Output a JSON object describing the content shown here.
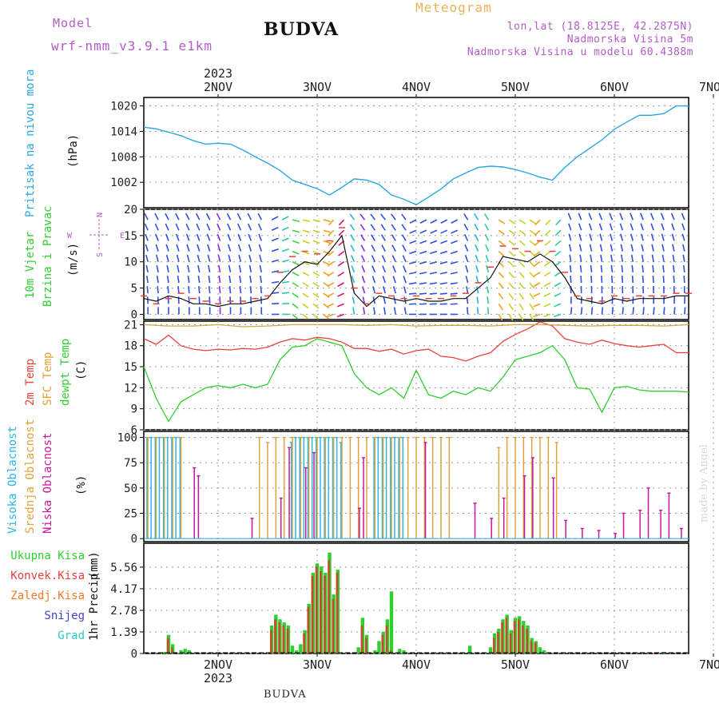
{
  "header": {
    "model_label": "Model",
    "model_name": "wrf-nmm_v3.9.1 e1km",
    "station": "BUDVA",
    "meteogram": "Meteogram",
    "lonlat": "lon,lat (18.8125E, 42.2875N)",
    "altitude": "Nadmorska Visina 5m",
    "model_altitude": "Nadmorska Visina u modelu 60.4388m"
  },
  "footer": {
    "station": "BUDVA",
    "made_by": "made by Angel"
  },
  "time_axis": {
    "year": "2023",
    "days": [
      "2NOV",
      "3NOV",
      "4NOV",
      "5NOV",
      "6NOV",
      "7NOV"
    ],
    "start_hour": -6,
    "end_hour": 126
  },
  "colors": {
    "pressure": "#29a7e1",
    "temp2m": "#e8413a",
    "sfc": "#e0a33a",
    "dewpt": "#2fcf2f",
    "high_cloud": "#2bb5e8",
    "mid_cloud": "#e0a33a",
    "low_cloud": "#c8189c",
    "total_precip": "#2fcf2f",
    "conv_precip": "#c84a2a",
    "gust": "#e8413a"
  },
  "chart_data": [
    {
      "type": "line",
      "panel": "pressure",
      "ylabel": [
        "Pritisak na nivou mora",
        "(hPa)"
      ],
      "ylim": [
        996,
        1022
      ],
      "yticks": [
        1002,
        1008,
        1014,
        1020
      ],
      "series": [
        {
          "x": [
            -6,
            -3,
            0,
            3,
            6,
            9,
            12,
            15,
            18,
            21,
            24,
            27,
            30,
            33,
            36,
            39,
            42,
            45,
            48,
            51,
            54,
            57,
            60,
            63,
            66,
            69,
            72,
            75,
            78,
            81,
            84,
            87,
            90,
            93,
            96,
            99,
            102,
            105,
            108,
            111,
            114,
            117,
            120,
            123,
            126
          ],
          "values": [
            1015,
            1014.6,
            1013.8,
            1013,
            1011.8,
            1011,
            1011.2,
            1011,
            1009.6,
            1008,
            1006.5,
            1004.8,
            1002.5,
            1001.5,
            1000.5,
            999,
            1000.8,
            1002.8,
            1002.5,
            1001.5,
            999,
            998,
            996.7,
            998.5,
            1000.4,
            1002.8,
            1004.2,
            1005.5,
            1005.8,
            1005.6,
            1005,
            1004.2,
            1003.2,
            1002.5,
            1005.5,
            1008,
            1010,
            1012,
            1014.5,
            1016.2,
            1017.8,
            1017.8,
            1018.2,
            1020,
            1020
          ]
        }
      ]
    },
    {
      "type": "line",
      "panel": "wind",
      "ylabel": [
        "10m Vjetar",
        "Brzina i Pravac",
        "(m/s)"
      ],
      "compass": {
        "n": "N",
        "s": "S",
        "w": "W",
        "e": "E"
      },
      "ylim": [
        -1,
        20
      ],
      "yticks": [
        0,
        5,
        10,
        15,
        20
      ],
      "series": [
        {
          "name": "speed",
          "x": [
            -6,
            -3,
            0,
            3,
            6,
            9,
            12,
            15,
            18,
            21,
            24,
            27,
            30,
            33,
            36,
            39,
            42,
            45,
            48,
            51,
            54,
            57,
            60,
            63,
            66,
            69,
            72,
            75,
            78,
            81,
            84,
            87,
            90,
            93,
            96,
            99,
            102,
            105,
            108,
            111,
            114,
            117,
            120,
            123,
            126
          ],
          "values": [
            3,
            2.5,
            3.5,
            3,
            2,
            2,
            1.5,
            2,
            2,
            2.5,
            3,
            6,
            8.5,
            10,
            9.5,
            12,
            15,
            4,
            1.5,
            3.5,
            3,
            2.5,
            3,
            2.5,
            2.5,
            3,
            3,
            5,
            7,
            11,
            10.5,
            10,
            11.5,
            10,
            7,
            3,
            2.5,
            2,
            3,
            2.5,
            3,
            3,
            3,
            3.5,
            3.5
          ]
        },
        {
          "name": "gust",
          "x": [
            -6,
            -3,
            0,
            3,
            6,
            9,
            12,
            15,
            18,
            21,
            24,
            27,
            30,
            33,
            36,
            39,
            42,
            45,
            48,
            51,
            54,
            57,
            60,
            63,
            66,
            69,
            72,
            75,
            78,
            81,
            84,
            87,
            90,
            93,
            96,
            99,
            102,
            105,
            108,
            111,
            114,
            117,
            120,
            123,
            126
          ],
          "values": [
            3.5,
            2,
            3,
            4,
            3,
            2.5,
            2,
            2.5,
            2.5,
            3,
            3.5,
            8,
            11,
            12,
            11.5,
            14,
            16.5,
            5,
            2,
            4,
            3.5,
            3,
            3.5,
            3,
            3,
            3.5,
            4,
            6,
            9,
            13,
            12.5,
            12,
            14,
            12,
            8,
            3.5,
            3,
            2.5,
            3.5,
            3,
            3.5,
            3.5,
            3.5,
            4,
            4
          ]
        }
      ]
    },
    {
      "type": "line",
      "panel": "temperature",
      "ylabel": [
        "2m Temp",
        "SFC Temp",
        "dewpt Temp",
        "(C)"
      ],
      "ylim": [
        6,
        21.5
      ],
      "yticks": [
        6,
        9,
        12,
        15,
        18,
        21
      ],
      "series": [
        {
          "name": "2m Temp",
          "x": [
            -6,
            -3,
            0,
            3,
            6,
            9,
            12,
            15,
            18,
            21,
            24,
            27,
            30,
            33,
            36,
            39,
            42,
            45,
            48,
            51,
            54,
            57,
            60,
            63,
            66,
            69,
            72,
            75,
            78,
            81,
            84,
            87,
            90,
            93,
            96,
            99,
            102,
            105,
            108,
            111,
            114,
            117,
            120,
            123,
            126
          ],
          "values": [
            19,
            18.2,
            19.5,
            18,
            17.5,
            17.3,
            17.5,
            17.4,
            17.6,
            17.5,
            17.8,
            18.5,
            19,
            18.8,
            19.2,
            19,
            18.5,
            17.6,
            17.6,
            17.2,
            17.5,
            16.8,
            17.3,
            17.5,
            16.5,
            16.3,
            15.8,
            16.5,
            17,
            18.6,
            19.6,
            20.4,
            21.4,
            20.8,
            19,
            18.5,
            18.2,
            18.8,
            18.3,
            18,
            17.8,
            18,
            18.2,
            17,
            17
          ]
        },
        {
          "name": "SFC Temp",
          "x": [
            -6,
            0,
            6,
            12,
            18,
            24,
            30,
            36,
            42,
            48,
            54,
            60,
            66,
            72,
            78,
            84,
            90,
            96,
            102,
            108,
            114,
            120,
            126
          ],
          "values": [
            21,
            20.8,
            20.8,
            21,
            20.7,
            20.8,
            21,
            21,
            21,
            20.9,
            21,
            20.8,
            20.9,
            20.9,
            20.8,
            21,
            21,
            20.9,
            20.8,
            20.9,
            20.9,
            20.8,
            21
          ]
        },
        {
          "name": "dewpt Temp",
          "x": [
            -6,
            -3,
            0,
            3,
            6,
            9,
            12,
            15,
            18,
            21,
            24,
            27,
            30,
            33,
            36,
            39,
            42,
            45,
            48,
            51,
            54,
            57,
            60,
            63,
            66,
            69,
            72,
            75,
            78,
            81,
            84,
            87,
            90,
            93,
            96,
            99,
            102,
            105,
            108,
            111,
            114,
            117,
            120,
            123,
            126
          ],
          "values": [
            15,
            10.5,
            7.2,
            10,
            11,
            12,
            12.3,
            12,
            12.5,
            12,
            12.5,
            16,
            17.8,
            18,
            19,
            18.5,
            18,
            14,
            12,
            11,
            12,
            10.5,
            14.5,
            11,
            10.5,
            11.5,
            11,
            12,
            11.5,
            13.5,
            16,
            16.5,
            17,
            18,
            16,
            12,
            11.8,
            8.5,
            12,
            12.2,
            11.7,
            11.5,
            11.5,
            11.5,
            11.4
          ]
        }
      ]
    },
    {
      "type": "bar",
      "panel": "clouds",
      "ylabel": [
        "Visoka Oblacnost",
        "Srednja Oblacnost",
        "Niska Oblacnost",
        "(%)"
      ],
      "ylim": [
        -3,
        106
      ],
      "yticks": [
        0,
        25,
        50,
        75,
        100
      ],
      "series": [
        {
          "name": "Visoka Oblacnost",
          "x": [
            -5,
            -4,
            -3,
            -2,
            -1,
            0,
            1,
            2,
            3,
            30,
            31,
            32,
            33,
            34,
            35,
            36,
            37,
            38,
            39,
            40,
            41,
            42,
            50,
            51,
            52,
            53,
            54,
            55,
            56,
            57
          ],
          "values": [
            100,
            100,
            100,
            100,
            100,
            100,
            100,
            100,
            100,
            95,
            100,
            100,
            100,
            100,
            100,
            100,
            100,
            100,
            100,
            100,
            100,
            95,
            100,
            100,
            100,
            100,
            100,
            100,
            100,
            100
          ]
        },
        {
          "name": "Srednja Oblacnost",
          "x": [
            -5,
            -3,
            -1,
            1,
            3,
            22,
            24,
            26,
            28,
            30,
            32,
            34,
            36,
            38,
            40,
            42,
            44,
            46,
            48,
            50,
            52,
            54,
            56,
            58,
            60,
            62,
            64,
            66,
            68,
            80,
            82,
            84,
            86,
            88,
            90,
            92,
            94
          ],
          "values": [
            100,
            100,
            100,
            100,
            100,
            100,
            95,
            100,
            100,
            100,
            100,
            100,
            100,
            100,
            100,
            100,
            100,
            100,
            100,
            100,
            100,
            100,
            100,
            100,
            100,
            100,
            100,
            100,
            100,
            90,
            100,
            100,
            100,
            100,
            100,
            100,
            95
          ]
        },
        {
          "name": "Niska Oblacnost",
          "x": [
            6,
            7,
            20,
            27,
            29,
            33,
            35,
            46,
            47,
            62,
            74,
            78,
            81,
            86,
            88,
            93,
            96,
            100,
            104,
            108,
            110,
            114,
            116,
            119,
            121,
            124
          ],
          "values": [
            70,
            62,
            20,
            40,
            90,
            70,
            85,
            30,
            80,
            95,
            35,
            20,
            40,
            62,
            80,
            60,
            18,
            10,
            8,
            5,
            25,
            28,
            50,
            28,
            45,
            10
          ]
        }
      ]
    },
    {
      "type": "bar",
      "panel": "precipitation",
      "ylabel": [
        "1hr Precip",
        "(mm)"
      ],
      "legend": [
        "Ukupna Kisa",
        "Konvek.Kisa",
        "Zaledj.Kisa",
        "Snijeg",
        "Grad"
      ],
      "ylim": [
        0,
        7.1
      ],
      "yticks": [
        0,
        1.39,
        2.78,
        4.17,
        5.56
      ],
      "series": [
        {
          "name": "Ukupna Kisa",
          "x": [
            -1,
            0,
            1,
            3,
            4,
            5,
            25,
            26,
            27,
            28,
            29,
            30,
            31,
            32,
            33,
            34,
            35,
            36,
            37,
            38,
            39,
            40,
            41,
            46,
            47,
            48,
            50,
            51,
            52,
            53,
            54,
            56,
            57,
            73,
            78,
            79,
            80,
            81,
            82,
            83,
            84,
            85,
            86,
            87,
            88,
            89,
            90,
            91,
            120
          ],
          "values": [
            0.1,
            1.2,
            0.6,
            0.2,
            0.3,
            0.2,
            1.8,
            2.5,
            2.2,
            2.0,
            1.8,
            0.5,
            0.2,
            0.6,
            1.5,
            3.2,
            5.2,
            5.8,
            5.6,
            5.2,
            6.5,
            3.8,
            5.4,
            0.4,
            2.3,
            1.2,
            0.2,
            0.8,
            1.4,
            2.2,
            4.0,
            0.3,
            0.2,
            0.5,
            0.4,
            1.3,
            1.6,
            2.2,
            2.5,
            1.5,
            2.3,
            2.4,
            2.1,
            1.8,
            1.0,
            0.8,
            0.4,
            0.2,
            0.1
          ]
        },
        {
          "name": "Konvek.Kisa",
          "x": [
            0,
            1,
            25,
            26,
            27,
            28,
            29,
            33,
            34,
            35,
            36,
            37,
            38,
            39,
            40,
            41,
            47,
            48,
            52,
            53,
            54,
            79,
            80,
            81,
            82,
            83,
            84,
            85,
            86,
            87,
            88,
            89
          ],
          "values": [
            1.0,
            0.4,
            1.5,
            2.2,
            2.0,
            1.8,
            1.6,
            1.3,
            3.0,
            5.0,
            5.6,
            5.3,
            5.0,
            6.0,
            3.5,
            5.2,
            1.8,
            1.0,
            1.2,
            1.8,
            0.2,
            1.0,
            1.4,
            2.0,
            2.3,
            1.3,
            2.1,
            2.2,
            1.8,
            1.6,
            0.8,
            0.7
          ]
        }
      ]
    }
  ]
}
